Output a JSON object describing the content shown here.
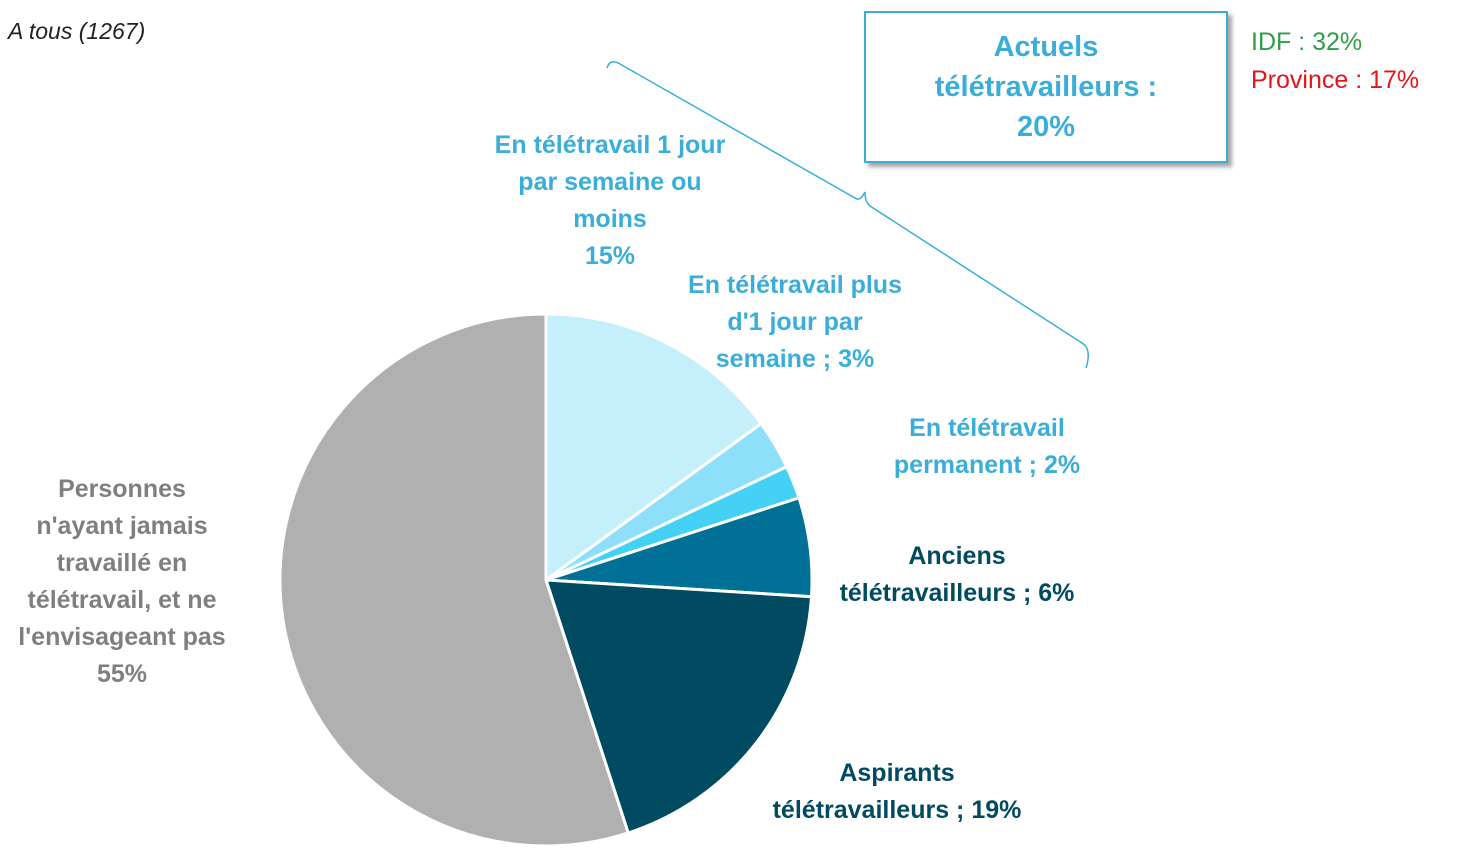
{
  "chart_data": {
    "type": "pie",
    "base": "A tous (1267)",
    "callout": {
      "title": "Actuels télétravailleurs :",
      "value_label": "20%",
      "value": 20
    },
    "notes": [
      {
        "text": "IDF : 32%",
        "color": "#2e9e4a"
      },
      {
        "text": "Province : 17%",
        "color": "#e0161b"
      }
    ],
    "categories": [
      "En télétravail 1 jour par semaine ou moins",
      "En télétravail plus d'1 jour par semaine ;",
      "En télétravail permanent ;",
      "Anciens télétravailleurs ;",
      "Aspirants télétravailleurs ;",
      "Personnes n'ayant jamais travaillé en télétravail, et ne l'envisageant pas"
    ],
    "values": [
      15,
      3,
      2,
      6,
      19,
      55
    ],
    "value_labels": [
      "15%",
      "3%",
      "2%",
      "6%",
      "19%",
      "55%"
    ],
    "colors": [
      "#c5effb",
      "#8ee0fa",
      "#45d0f5",
      "#007096",
      "#004a62",
      "#b0b0b0"
    ],
    "label_colors": [
      "#3aaed8",
      "#3aaed8",
      "#3aaed8",
      "#004a62",
      "#004a62",
      "#7f7f7f"
    ]
  }
}
